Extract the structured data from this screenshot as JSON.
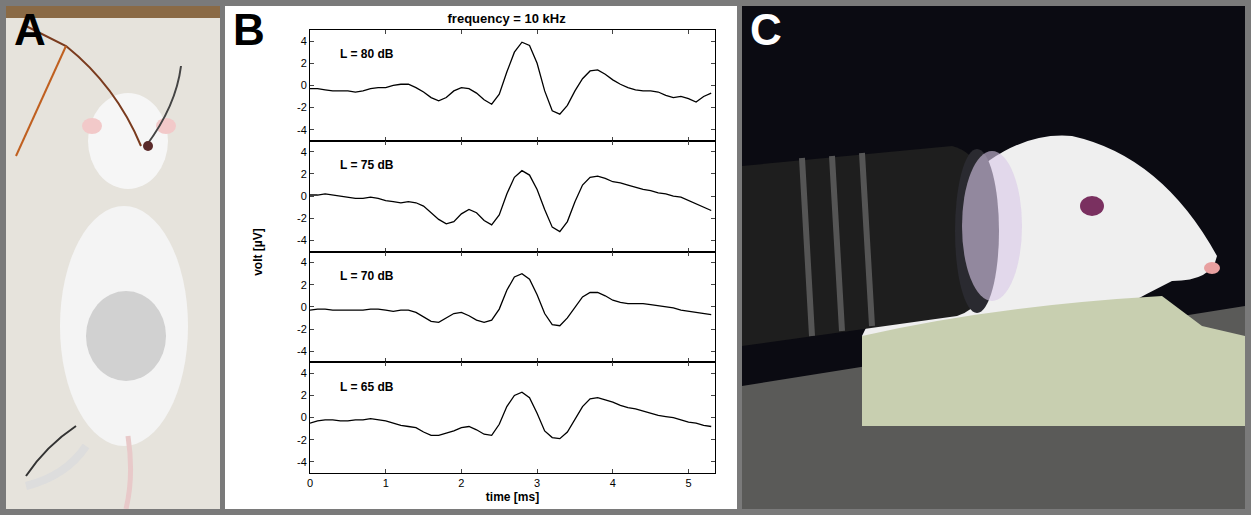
{
  "panel_labels": [
    "A",
    "B",
    "C"
  ],
  "figure_title": "frequency = 10 kHz",
  "x_label": "time [ms]",
  "y_label": "volt [µV]",
  "chart_data": [
    {
      "type": "line",
      "annotation": "L = 80 dB",
      "color": "#000000",
      "grid": false,
      "tick_labels": "y",
      "xlim": [
        0,
        5.35
      ],
      "ylim": [
        -5,
        5
      ],
      "xticks": [
        0,
        1,
        2,
        3,
        4,
        5
      ],
      "yticks": [
        -4,
        -2,
        0,
        2,
        4
      ],
      "x": [
        0,
        0.1,
        0.2,
        0.3,
        0.4,
        0.5,
        0.6,
        0.7,
        0.8,
        0.9,
        1.0,
        1.1,
        1.2,
        1.3,
        1.4,
        1.5,
        1.6,
        1.7,
        1.8,
        1.9,
        2.0,
        2.1,
        2.2,
        2.3,
        2.4,
        2.5,
        2.6,
        2.7,
        2.8,
        2.9,
        3.0,
        3.1,
        3.2,
        3.3,
        3.4,
        3.5,
        3.6,
        3.7,
        3.8,
        3.9,
        4.0,
        4.1,
        4.2,
        4.3,
        4.4,
        4.5,
        4.6,
        4.7,
        4.8,
        4.9,
        5.0,
        5.1,
        5.2,
        5.3
      ],
      "values": [
        -0.3,
        -0.3,
        -0.4,
        -0.5,
        -0.5,
        -0.5,
        -0.6,
        -0.5,
        -0.3,
        -0.2,
        -0.2,
        0,
        0.1,
        0.1,
        -0.2,
        -0.6,
        -1.1,
        -1.4,
        -1.1,
        -0.5,
        -0.2,
        -0.3,
        -0.7,
        -1.3,
        -1.7,
        -0.8,
        1.2,
        3.0,
        3.9,
        3.6,
        2.0,
        -0.5,
        -2.3,
        -2.6,
        -1.8,
        -0.5,
        0.6,
        1.3,
        1.4,
        1.0,
        0.5,
        0.1,
        -0.2,
        -0.4,
        -0.5,
        -0.5,
        -0.6,
        -0.9,
        -1.1,
        -1.0,
        -1.2,
        -1.5,
        -1.0,
        -0.7
      ]
    },
    {
      "type": "line",
      "annotation": "L = 75 dB",
      "color": "#000000",
      "grid": false,
      "tick_labels": "y",
      "xlim": [
        0,
        5.35
      ],
      "ylim": [
        -5,
        5
      ],
      "xticks": [
        0,
        1,
        2,
        3,
        4,
        5
      ],
      "yticks": [
        -4,
        -2,
        0,
        2,
        4
      ],
      "x": [
        0,
        0.1,
        0.2,
        0.3,
        0.4,
        0.5,
        0.6,
        0.7,
        0.8,
        0.9,
        1.0,
        1.1,
        1.2,
        1.3,
        1.4,
        1.5,
        1.6,
        1.7,
        1.8,
        1.9,
        2.0,
        2.1,
        2.2,
        2.3,
        2.4,
        2.5,
        2.6,
        2.7,
        2.8,
        2.9,
        3.0,
        3.1,
        3.2,
        3.3,
        3.4,
        3.5,
        3.6,
        3.7,
        3.8,
        3.9,
        4.0,
        4.1,
        4.2,
        4.3,
        4.4,
        4.5,
        4.6,
        4.7,
        4.8,
        4.9,
        5.0,
        5.1,
        5.2,
        5.3
      ],
      "values": [
        0.1,
        0.1,
        0.2,
        0.1,
        0,
        -0.1,
        -0.2,
        -0.2,
        -0.1,
        -0.2,
        -0.4,
        -0.5,
        -0.6,
        -0.5,
        -0.6,
        -0.9,
        -1.5,
        -2.1,
        -2.5,
        -2.3,
        -1.6,
        -1.2,
        -1.5,
        -2.2,
        -2.6,
        -1.7,
        0.2,
        1.7,
        2.3,
        1.9,
        0.6,
        -1.2,
        -2.8,
        -3.2,
        -2.3,
        -0.5,
        1.0,
        1.7,
        1.8,
        1.6,
        1.3,
        1.2,
        1.0,
        0.8,
        0.6,
        0.5,
        0.3,
        0.2,
        0,
        -0.1,
        -0.4,
        -0.7,
        -1.0,
        -1.3
      ]
    },
    {
      "type": "line",
      "annotation": "L = 70 dB",
      "color": "#000000",
      "grid": false,
      "tick_labels": "y",
      "xlim": [
        0,
        5.35
      ],
      "ylim": [
        -5,
        5
      ],
      "xticks": [
        0,
        1,
        2,
        3,
        4,
        5
      ],
      "yticks": [
        -4,
        -2,
        0,
        2,
        4
      ],
      "x": [
        0,
        0.1,
        0.2,
        0.3,
        0.4,
        0.5,
        0.6,
        0.7,
        0.8,
        0.9,
        1.0,
        1.1,
        1.2,
        1.3,
        1.4,
        1.5,
        1.6,
        1.7,
        1.8,
        1.9,
        2.0,
        2.1,
        2.2,
        2.3,
        2.4,
        2.5,
        2.6,
        2.7,
        2.8,
        2.9,
        3.0,
        3.1,
        3.2,
        3.3,
        3.4,
        3.5,
        3.6,
        3.7,
        3.8,
        3.9,
        4.0,
        4.1,
        4.2,
        4.3,
        4.4,
        4.5,
        4.6,
        4.7,
        4.8,
        4.9,
        5.0,
        5.1,
        5.2,
        5.3
      ],
      "values": [
        -0.3,
        -0.2,
        -0.2,
        -0.3,
        -0.3,
        -0.3,
        -0.3,
        -0.3,
        -0.2,
        -0.2,
        -0.3,
        -0.4,
        -0.3,
        -0.3,
        -0.5,
        -0.9,
        -1.3,
        -1.4,
        -1.0,
        -0.6,
        -0.5,
        -0.8,
        -1.2,
        -1.4,
        -1.2,
        -0.2,
        1.5,
        2.7,
        3.0,
        2.5,
        1.1,
        -0.6,
        -1.6,
        -1.7,
        -1.0,
        0,
        0.9,
        1.3,
        1.3,
        1.0,
        0.6,
        0.4,
        0.3,
        0.3,
        0.3,
        0.2,
        0.1,
        0,
        -0.1,
        -0.3,
        -0.4,
        -0.5,
        -0.6,
        -0.7
      ]
    },
    {
      "type": "line",
      "annotation": "L = 65 dB",
      "color": "#000000",
      "grid": false,
      "xlim": [
        0,
        5.35
      ],
      "ylim": [
        -5,
        5
      ],
      "xticks": [
        0,
        1,
        2,
        3,
        4,
        5
      ],
      "yticks": [
        -4,
        -2,
        0,
        2,
        4
      ],
      "x": [
        0,
        0.1,
        0.2,
        0.3,
        0.4,
        0.5,
        0.6,
        0.7,
        0.8,
        0.9,
        1.0,
        1.1,
        1.2,
        1.3,
        1.4,
        1.5,
        1.6,
        1.7,
        1.8,
        1.9,
        2.0,
        2.1,
        2.2,
        2.3,
        2.4,
        2.5,
        2.6,
        2.7,
        2.8,
        2.9,
        3.0,
        3.1,
        3.2,
        3.3,
        3.4,
        3.5,
        3.6,
        3.7,
        3.8,
        3.9,
        4.0,
        4.1,
        4.2,
        4.3,
        4.4,
        4.5,
        4.6,
        4.7,
        4.8,
        4.9,
        5.0,
        5.1,
        5.2,
        5.3
      ],
      "values": [
        -0.5,
        -0.3,
        -0.2,
        -0.2,
        -0.3,
        -0.3,
        -0.2,
        -0.2,
        -0.1,
        -0.2,
        -0.3,
        -0.5,
        -0.7,
        -0.8,
        -0.9,
        -1.3,
        -1.6,
        -1.6,
        -1.4,
        -1.2,
        -0.9,
        -0.8,
        -1.1,
        -1.5,
        -1.6,
        -0.6,
        1.0,
        2.0,
        2.3,
        1.8,
        0.4,
        -1.2,
        -1.8,
        -1.9,
        -1.3,
        -0.2,
        1.0,
        1.7,
        1.8,
        1.6,
        1.4,
        1.1,
        0.9,
        0.8,
        0.6,
        0.4,
        0.2,
        0.1,
        0,
        -0.2,
        -0.4,
        -0.5,
        -0.7,
        -0.8
      ]
    }
  ]
}
